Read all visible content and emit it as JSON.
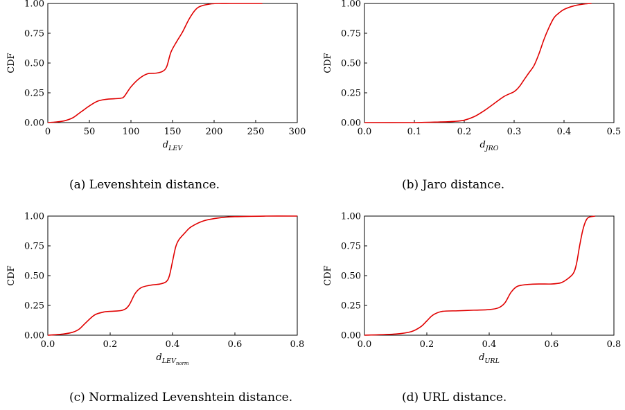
{
  "chart_data": [
    {
      "type": "line",
      "caption": "(a) Levenshtein distance.",
      "ylabel": "CDF",
      "xlabel": {
        "base": "d",
        "sub": "LEV",
        "subsub": ""
      },
      "xlim": [
        0,
        300
      ],
      "ylim": [
        0,
        1
      ],
      "xticks": [
        0,
        50,
        100,
        150,
        200,
        250,
        300
      ],
      "yticks": [
        "0.00",
        "0.25",
        "0.50",
        "0.75",
        "1.00"
      ],
      "color": "#e00000",
      "x": [
        0,
        10,
        20,
        30,
        38,
        42,
        50,
        60,
        70,
        80,
        88,
        92,
        100,
        110,
        120,
        130,
        138,
        143,
        148,
        155,
        162,
        170,
        178,
        185,
        195,
        205,
        220,
        240,
        258
      ],
      "y": [
        0.0,
        0.005,
        0.015,
        0.04,
        0.08,
        0.1,
        0.14,
        0.18,
        0.195,
        0.2,
        0.205,
        0.22,
        0.3,
        0.37,
        0.41,
        0.415,
        0.43,
        0.47,
        0.59,
        0.68,
        0.76,
        0.87,
        0.95,
        0.98,
        0.995,
        1.0,
        1.0,
        1.0,
        1.0
      ]
    },
    {
      "type": "line",
      "caption": "(b) Jaro distance.",
      "ylabel": "CDF",
      "xlabel": {
        "base": "d",
        "sub": "JRO",
        "subsub": ""
      },
      "xlim": [
        0,
        0.5
      ],
      "ylim": [
        0,
        1
      ],
      "xticks": [
        "0.0",
        "0.1",
        "0.2",
        "0.3",
        "0.4",
        "0.5"
      ],
      "yticks": [
        "0.00",
        "0.25",
        "0.50",
        "0.75",
        "1.00"
      ],
      "color": "#e00000",
      "x": [
        0.0,
        0.1,
        0.15,
        0.18,
        0.2,
        0.22,
        0.24,
        0.26,
        0.28,
        0.3,
        0.31,
        0.32,
        0.33,
        0.34,
        0.35,
        0.36,
        0.37,
        0.38,
        0.39,
        0.4,
        0.42,
        0.44,
        0.455
      ],
      "y": [
        0.0,
        0.0,
        0.005,
        0.01,
        0.02,
        0.05,
        0.1,
        0.16,
        0.22,
        0.26,
        0.3,
        0.36,
        0.42,
        0.48,
        0.58,
        0.7,
        0.8,
        0.88,
        0.92,
        0.95,
        0.98,
        0.995,
        1.0
      ]
    },
    {
      "type": "line",
      "caption": "(c) Normalized Levenshtein distance.",
      "ylabel": "CDF",
      "xlabel": {
        "base": "d",
        "sub": "LEV",
        "subsub": "norm"
      },
      "xlim": [
        0,
        0.8
      ],
      "ylim": [
        0,
        1
      ],
      "xticks": [
        "0.0",
        "0.2",
        "0.4",
        "0.6",
        "0.8"
      ],
      "yticks": [
        "0.00",
        "0.25",
        "0.50",
        "0.75",
        "1.00"
      ],
      "color": "#e00000",
      "x": [
        0.0,
        0.05,
        0.08,
        0.1,
        0.12,
        0.15,
        0.18,
        0.2,
        0.24,
        0.26,
        0.28,
        0.3,
        0.33,
        0.36,
        0.38,
        0.39,
        0.4,
        0.41,
        0.42,
        0.44,
        0.46,
        0.5,
        0.55,
        0.6,
        0.7,
        0.8
      ],
      "y": [
        0.0,
        0.01,
        0.025,
        0.05,
        0.1,
        0.17,
        0.195,
        0.2,
        0.21,
        0.25,
        0.35,
        0.4,
        0.42,
        0.43,
        0.45,
        0.5,
        0.62,
        0.74,
        0.8,
        0.86,
        0.91,
        0.96,
        0.985,
        0.995,
        1.0,
        1.0
      ]
    },
    {
      "type": "line",
      "caption": "(d) URL distance.",
      "ylabel": "CDF",
      "xlabel": {
        "base": "d",
        "sub": "URL",
        "subsub": ""
      },
      "xlim": [
        0,
        0.8
      ],
      "ylim": [
        0,
        1
      ],
      "xticks": [
        "0.0",
        "0.2",
        "0.4",
        "0.6",
        "0.8"
      ],
      "yticks": [
        "0.00",
        "0.25",
        "0.50",
        "0.75",
        "1.00"
      ],
      "color": "#e00000",
      "x": [
        0.0,
        0.1,
        0.15,
        0.18,
        0.2,
        0.22,
        0.25,
        0.3,
        0.35,
        0.4,
        0.43,
        0.45,
        0.47,
        0.49,
        0.52,
        0.56,
        0.6,
        0.63,
        0.65,
        0.67,
        0.68,
        0.69,
        0.7,
        0.71,
        0.72,
        0.74
      ],
      "y": [
        0.0,
        0.01,
        0.03,
        0.07,
        0.12,
        0.17,
        0.2,
        0.205,
        0.21,
        0.215,
        0.23,
        0.27,
        0.36,
        0.41,
        0.425,
        0.43,
        0.43,
        0.44,
        0.47,
        0.52,
        0.6,
        0.75,
        0.88,
        0.96,
        0.99,
        1.0
      ]
    }
  ]
}
